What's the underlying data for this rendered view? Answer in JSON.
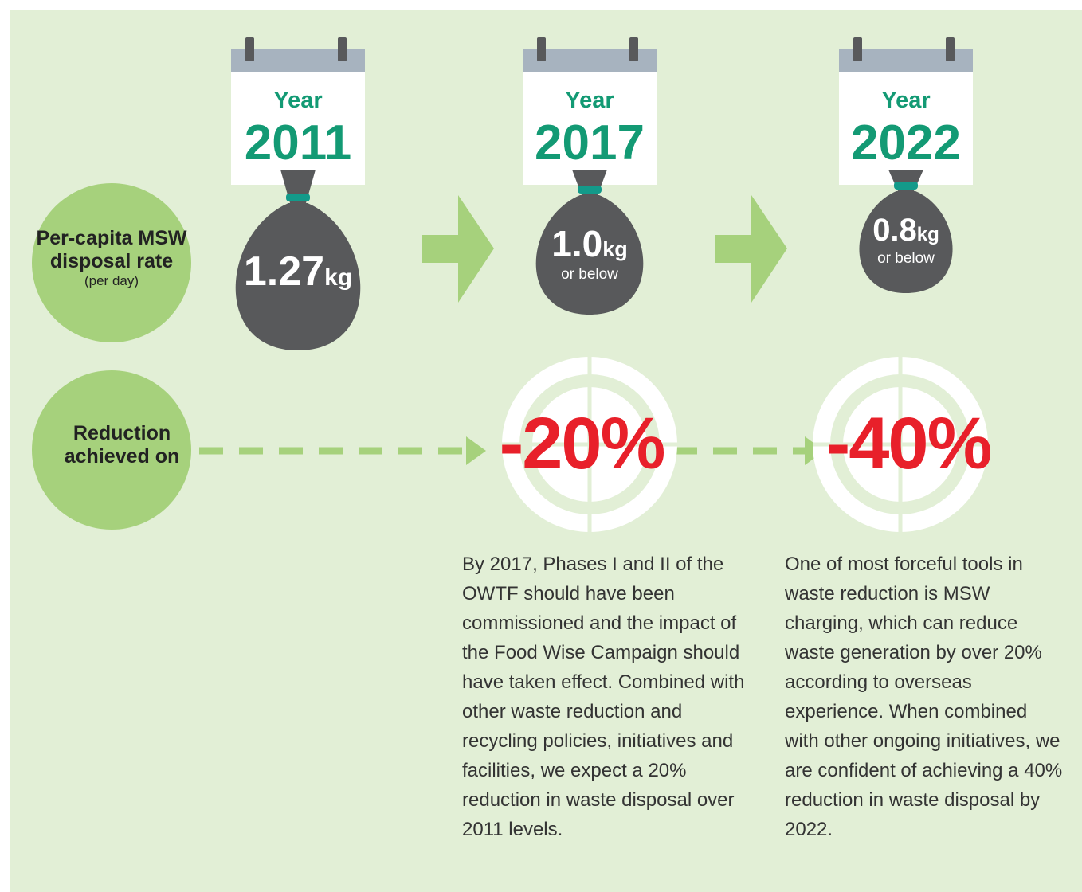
{
  "row_labels": [
    {
      "title": "Per-capita MSW disposal rate",
      "note": "(per day)"
    },
    {
      "title": "Reduction achieved on"
    }
  ],
  "years": [
    {
      "label": "Year",
      "year": "2011",
      "amount": "1.27",
      "unit": "kg"
    },
    {
      "label": "Year",
      "year": "2017",
      "amount": "1.0",
      "unit": "kg",
      "qualifier": "or below"
    },
    {
      "label": "Year",
      "year": "2022",
      "amount": "0.8",
      "unit": "kg",
      "qualifier": "or below"
    }
  ],
  "targets": [
    "-20%",
    "-40%"
  ],
  "notes": [
    "By 2017, Phases I and II of the OWTF should have been commissioned and the impact of the Food Wise Campaign should have taken effect. Combined with other waste reduction and recycling policies, initiatives and facilities, we expect a 20% reduction in waste disposal over 2011 levels.",
    "One of most forceful tools in waste reduction is MSW charging, which can reduce waste generation by over 20% according to overseas experience. When combined with other ongoing initiatives, we are confident of achieving a 40% reduction in waste disposal by 2022."
  ]
}
